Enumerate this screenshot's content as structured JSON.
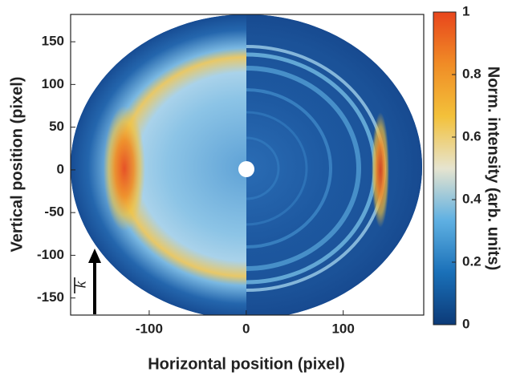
{
  "chart_data": {
    "type": "image",
    "xlabel": "Horizontal position (pixel)",
    "ylabel": "Vertical position (pixel)",
    "xlim": [
      -181,
      183
    ],
    "xticks": [
      -100,
      0,
      100
    ],
    "ylim": [
      -170,
      182
    ],
    "yticks": [
      -150,
      -100,
      -50,
      0,
      50,
      100,
      150
    ],
    "annotation": "k",
    "colorbar": {
      "label": "Norm. intensity (arb. units)",
      "lim": [
        0,
        1
      ],
      "ticks": [
        0,
        0.2,
        0.4,
        0.6,
        0.8,
        1
      ],
      "colors": [
        "#0c3a78",
        "#1a70b8",
        "#5fb0e2",
        "#e6e4cf",
        "#f3c13a",
        "#f08c26",
        "#e8451c"
      ]
    }
  }
}
